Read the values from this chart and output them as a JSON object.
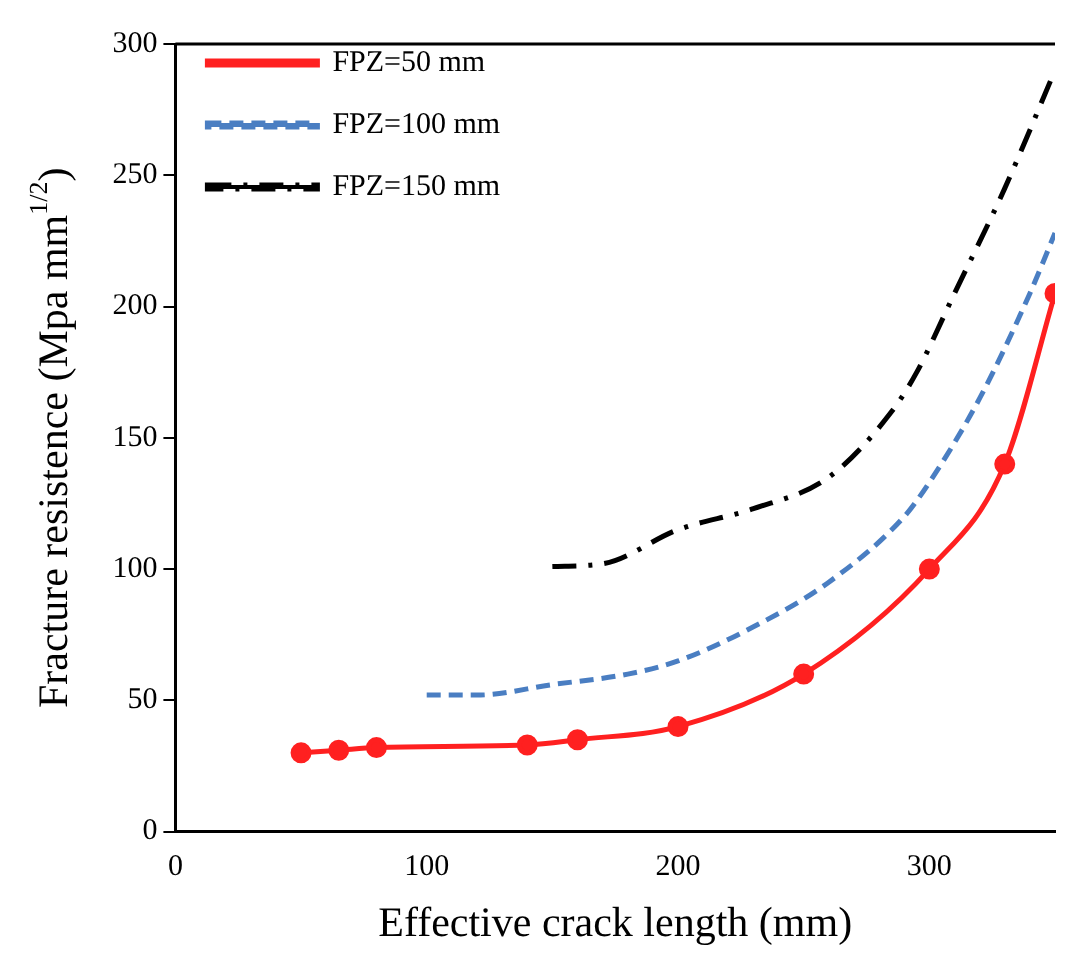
{
  "chart_data": {
    "type": "line",
    "xlabel": "Effective crack length (mm)",
    "ylabel": "Fracture resistence (Mpa mm$^{1/2}$)",
    "xlim": [
      0,
      350
    ],
    "xticks": [
      0,
      100,
      200,
      300
    ],
    "ylim": [
      0,
      300
    ],
    "yticks": [
      0,
      50,
      100,
      150,
      200,
      250,
      300
    ],
    "grid": false,
    "legend": "top left",
    "series": [
      {
        "name": "FPZ=50 mm",
        "color": "#ff2020",
        "marker": "circle",
        "line_style": "solid",
        "x": [
          50,
          65,
          80,
          140,
          160,
          200,
          250,
          300,
          330,
          350
        ],
        "values": [
          30,
          31,
          32,
          33,
          35,
          40,
          60,
          100,
          140,
          205
        ]
      },
      {
        "name": "FPZ=100 mm",
        "color": "#4a7ec2",
        "marker": "none",
        "line_style": "dashed",
        "x": [
          100,
          120,
          150,
          180,
          200,
          230,
          260,
          290,
          300,
          320,
          340,
          350
        ],
        "values": [
          52,
          52,
          56,
          60,
          65,
          78,
          95,
          120,
          133,
          165,
          205,
          228
        ]
      },
      {
        "name": "FPZ=150 mm",
        "color": "#000000",
        "marker": "none",
        "line_style": "dashdot",
        "x": [
          150,
          170,
          200,
          230,
          260,
          285,
          295,
          310,
          330,
          350
        ],
        "values": [
          101,
          102,
          115,
          123,
          135,
          160,
          175,
          205,
          245,
          290
        ]
      }
    ]
  }
}
